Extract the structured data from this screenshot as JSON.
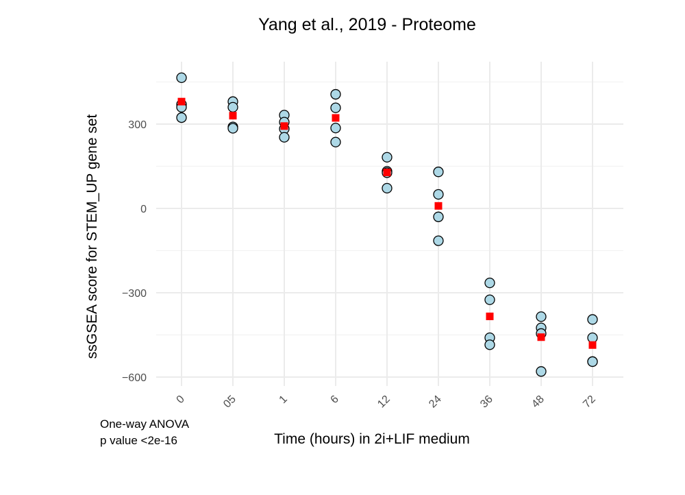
{
  "chart_data": {
    "type": "scatter",
    "title": "Yang et al., 2019 - Proteome",
    "xlabel": "Time (hours) in 2i+LIF medium",
    "ylabel": "ssGSEA score for STEM_UP gene set",
    "categories": [
      "0",
      "05",
      "1",
      "6",
      "12",
      "24",
      "36",
      "48",
      "72"
    ],
    "yticks": [
      300,
      0,
      -300,
      -600
    ],
    "ytick_labels": [
      "300",
      "0",
      "−300",
      "−600"
    ],
    "ylim": [
      -630,
      480
    ],
    "grid": true,
    "colors": {
      "point_fill": "#add8e6",
      "point_stroke": "#000000",
      "mean_marker": "#ff0000"
    },
    "series": [
      {
        "marker": "circle",
        "points": [
          {
            "x": "0",
            "values": [
              465,
              370,
              360,
              323
            ]
          },
          {
            "x": "05",
            "values": [
              380,
              360,
              290,
              285
            ]
          },
          {
            "x": "1",
            "values": [
              332,
              307,
              283,
              253
            ]
          },
          {
            "x": "6",
            "values": [
              406,
              358,
              286,
              236
            ]
          },
          {
            "x": "12",
            "values": [
              182,
              132,
              127,
              72
            ]
          },
          {
            "x": "24",
            "values": [
              130,
              50,
              -30,
              -115
            ]
          },
          {
            "x": "36",
            "values": [
              -265,
              -325,
              -460,
              -485
            ]
          },
          {
            "x": "48",
            "values": [
              -385,
              -425,
              -445,
              -580
            ]
          },
          {
            "x": "72",
            "values": [
              -395,
              -460,
              -545,
              -545
            ]
          }
        ]
      },
      {
        "marker": "square",
        "points": [
          {
            "x": "0",
            "values": [
              380
            ]
          },
          {
            "x": "05",
            "values": [
              330
            ]
          },
          {
            "x": "1",
            "values": [
              293
            ]
          },
          {
            "x": "6",
            "values": [
              322
            ]
          },
          {
            "x": "12",
            "values": [
              128
            ]
          },
          {
            "x": "24",
            "values": [
              9
            ]
          },
          {
            "x": "36",
            "values": [
              -384
            ]
          },
          {
            "x": "48",
            "values": [
              -458
            ]
          },
          {
            "x": "72",
            "values": [
              -486
            ]
          }
        ]
      }
    ],
    "annotation": {
      "line1": "One-way ANOVA",
      "line2": "p value <2e-16"
    }
  }
}
